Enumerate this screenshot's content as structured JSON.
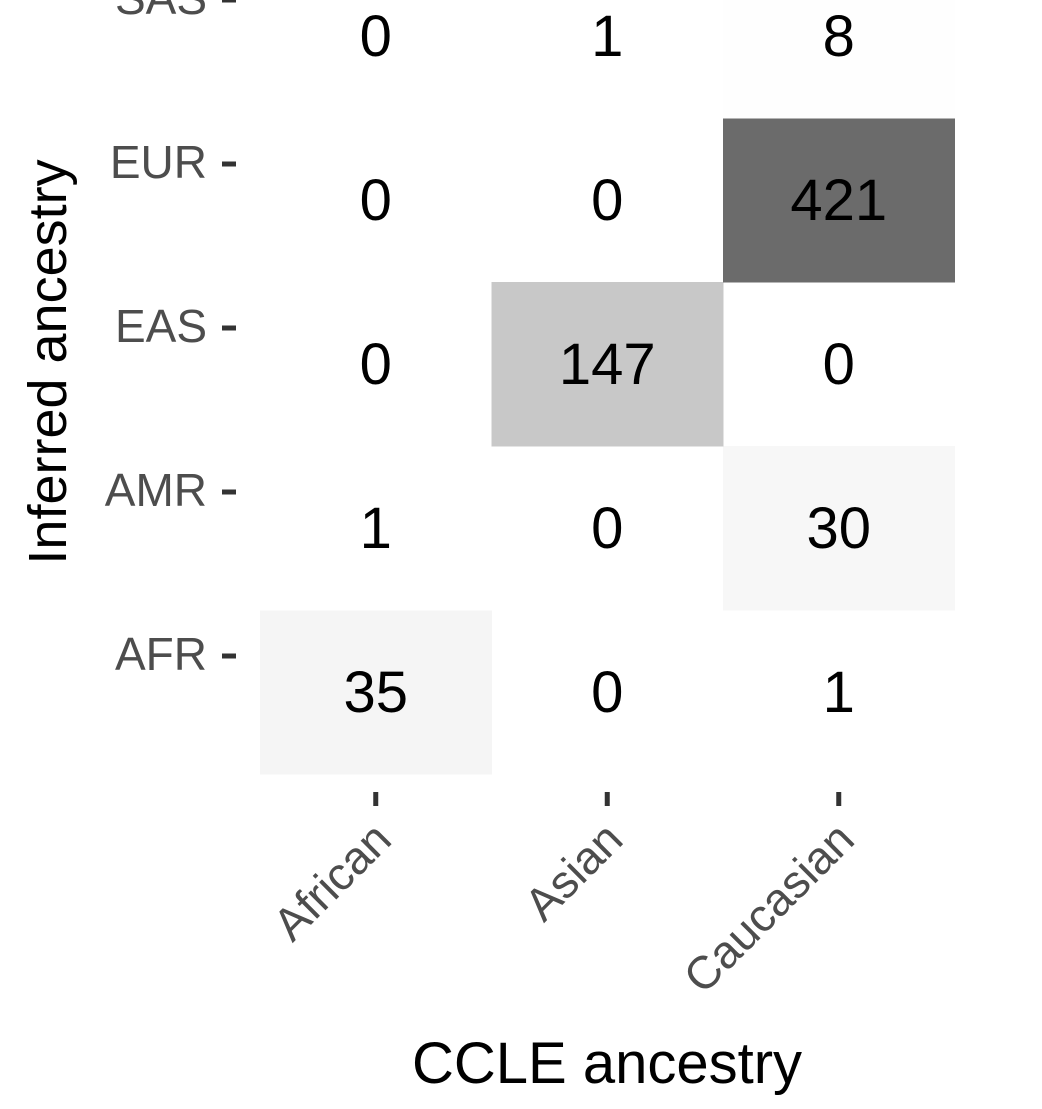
{
  "chart_data": {
    "type": "heatmap",
    "xlabel": "CCLE ancestry",
    "ylabel": "Inferred ancestry",
    "x_categories": [
      "African",
      "Asian",
      "Caucasian"
    ],
    "y_categories": [
      "AFR",
      "AMR",
      "EAS",
      "EUR",
      "SAS"
    ],
    "values": [
      [
        35,
        0,
        1
      ],
      [
        1,
        0,
        30
      ],
      [
        0,
        147,
        0
      ],
      [
        0,
        0,
        421
      ],
      [
        0,
        1,
        8
      ]
    ],
    "color_low": "#ffffff",
    "color_high": "#6b6b6b",
    "color_scale": "log",
    "grid": false,
    "legend": "none"
  }
}
